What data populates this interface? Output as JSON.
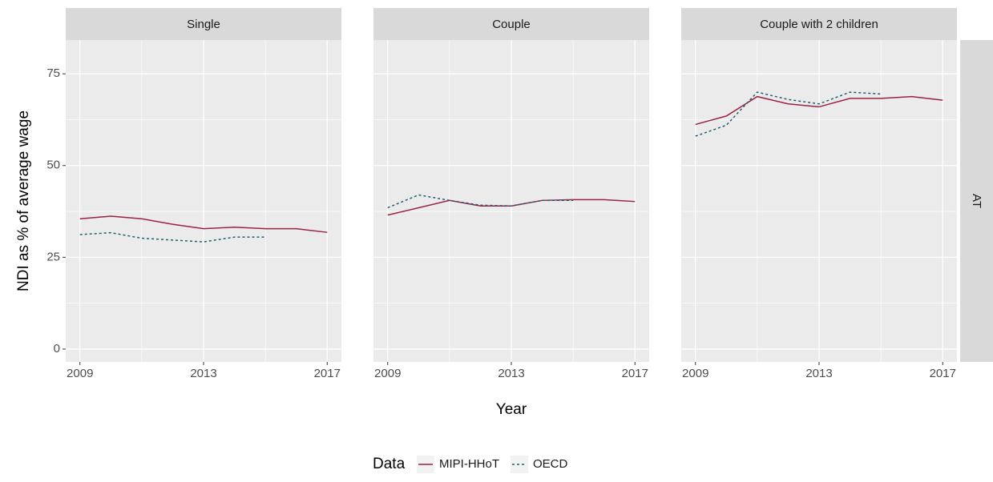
{
  "chart_data": {
    "type": "line",
    "facets": [
      "Single",
      "Couple",
      "Couple with 2 children"
    ],
    "row_label": "AT",
    "xlabel": "Year",
    "ylabel": "NDI as % of average wage",
    "legend_title": "Data",
    "x": [
      2009,
      2010,
      2011,
      2012,
      2013,
      2014,
      2015,
      2016,
      2017
    ],
    "xlim": [
      2008.54,
      2017.46
    ],
    "xticks": [
      2009,
      2013,
      2017
    ],
    "ylim": [
      -3.5,
      84.2
    ],
    "yticks": [
      0,
      25,
      50,
      75
    ],
    "grid": true,
    "series": [
      {
        "name": "MIPI-HHoT",
        "color": "#9b2242",
        "line_style": "solid",
        "values": [
          [
            35.5,
            36.2,
            35.5,
            34,
            32.8,
            33.2,
            32.8,
            32.8,
            31.8
          ],
          [
            36.5,
            38.5,
            40.5,
            39,
            39,
            40.5,
            40.7,
            40.7,
            40.2
          ],
          [
            61.2,
            63.5,
            68.8,
            66.8,
            66,
            68.3,
            68.3,
            68.8,
            67.8
          ]
        ]
      },
      {
        "name": "OECD",
        "color": "#1f5f75",
        "line_style": "dotted",
        "values": [
          [
            31.2,
            31.7,
            30.2,
            29.7,
            29.2,
            30.5,
            30.5,
            null,
            null
          ],
          [
            38.5,
            42,
            40.5,
            39.2,
            39,
            40.5,
            40.5,
            null,
            null
          ],
          [
            58,
            61,
            70,
            68,
            66.8,
            70,
            69.5,
            null,
            null
          ]
        ]
      }
    ]
  }
}
